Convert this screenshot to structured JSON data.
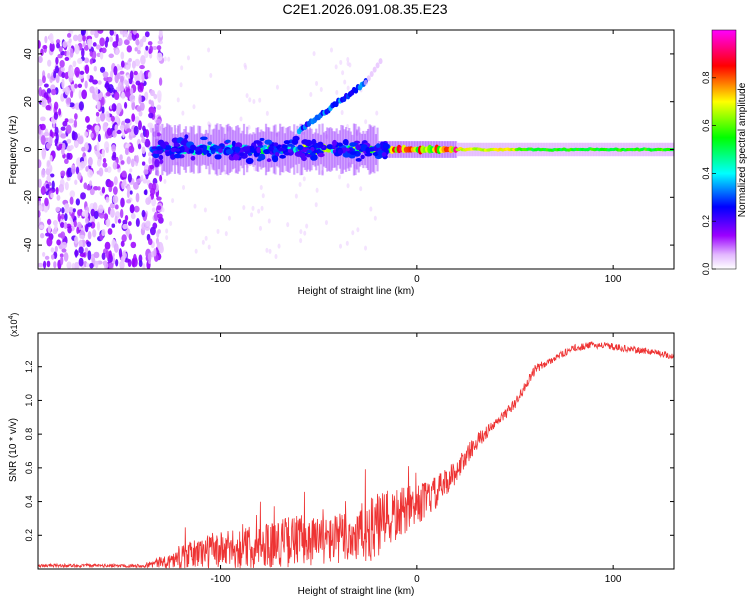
{
  "title": "C2E1.2026.091.08.35.E23",
  "chart_data": [
    {
      "type": "heatmap",
      "name": "spectrogram",
      "xlabel": "Height of straight line (km)",
      "ylabel": "Frequency (Hz)",
      "xlim": [
        -193,
        131
      ],
      "ylim": [
        -50,
        50
      ],
      "xticks": [
        -100,
        0,
        100
      ],
      "yticks": [
        -40,
        -20,
        0,
        20,
        40
      ],
      "colorbar": {
        "label": "Normalized spectral amplitude",
        "range": [
          0,
          1
        ],
        "ticks": [
          0.0,
          0.2,
          0.4,
          0.6,
          0.8
        ],
        "tick_labels": [
          "0.0",
          "0.2",
          "0.4",
          "0.6",
          "0.8"
        ],
        "colormap": [
          "#ffffff",
          "#9b00ff",
          "#0000ff",
          "#00ffff",
          "#00ff00",
          "#ffff00",
          "#ff0000",
          "#ff00ff"
        ]
      },
      "features": {
        "noise_region_x": [
          -193,
          -130
        ],
        "main_line_freq_hz": 0,
        "main_line_x": [
          -135,
          131
        ],
        "secondary_line_x": [
          -60,
          -26
        ],
        "secondary_line_freq_hz": [
          8,
          28
        ]
      }
    },
    {
      "type": "line",
      "name": "snr",
      "xlabel": "Height of straight line (km)",
      "ylabel": "SNR (10 * v/v)",
      "y_multiplier_label": "(x10",
      "y_multiplier_exp": "4",
      "xlim": [
        -193,
        131
      ],
      "ylim": [
        0,
        1.4
      ],
      "xticks": [
        -100,
        0,
        100
      ],
      "yticks": [
        0.2,
        0.4,
        0.6,
        0.8,
        1.0,
        1.2
      ],
      "ytick_labels": [
        "0.2",
        "0.4",
        "0.6",
        "0.8",
        "1.0",
        "1.2"
      ],
      "color": "#ee3333",
      "series_envelope": {
        "x": [
          -193,
          -140,
          -125,
          -110,
          -90,
          -75,
          -60,
          -45,
          -30,
          -20,
          -10,
          0,
          10,
          20,
          30,
          40,
          50,
          55,
          60,
          70,
          80,
          90,
          100,
          110,
          120,
          131
        ],
        "y_mean": [
          0.02,
          0.02,
          0.05,
          0.1,
          0.12,
          0.15,
          0.17,
          0.17,
          0.2,
          0.25,
          0.32,
          0.38,
          0.45,
          0.58,
          0.75,
          0.86,
          0.98,
          1.08,
          1.18,
          1.25,
          1.31,
          1.33,
          1.32,
          1.3,
          1.29,
          1.26
        ],
        "y_noise": [
          0.01,
          0.01,
          0.05,
          0.1,
          0.12,
          0.14,
          0.16,
          0.14,
          0.18,
          0.2,
          0.16,
          0.12,
          0.1,
          0.07,
          0.05,
          0.03,
          0.03,
          0.03,
          0.03,
          0.02,
          0.02,
          0.02,
          0.02,
          0.02,
          0.02,
          0.02
        ]
      }
    }
  ]
}
